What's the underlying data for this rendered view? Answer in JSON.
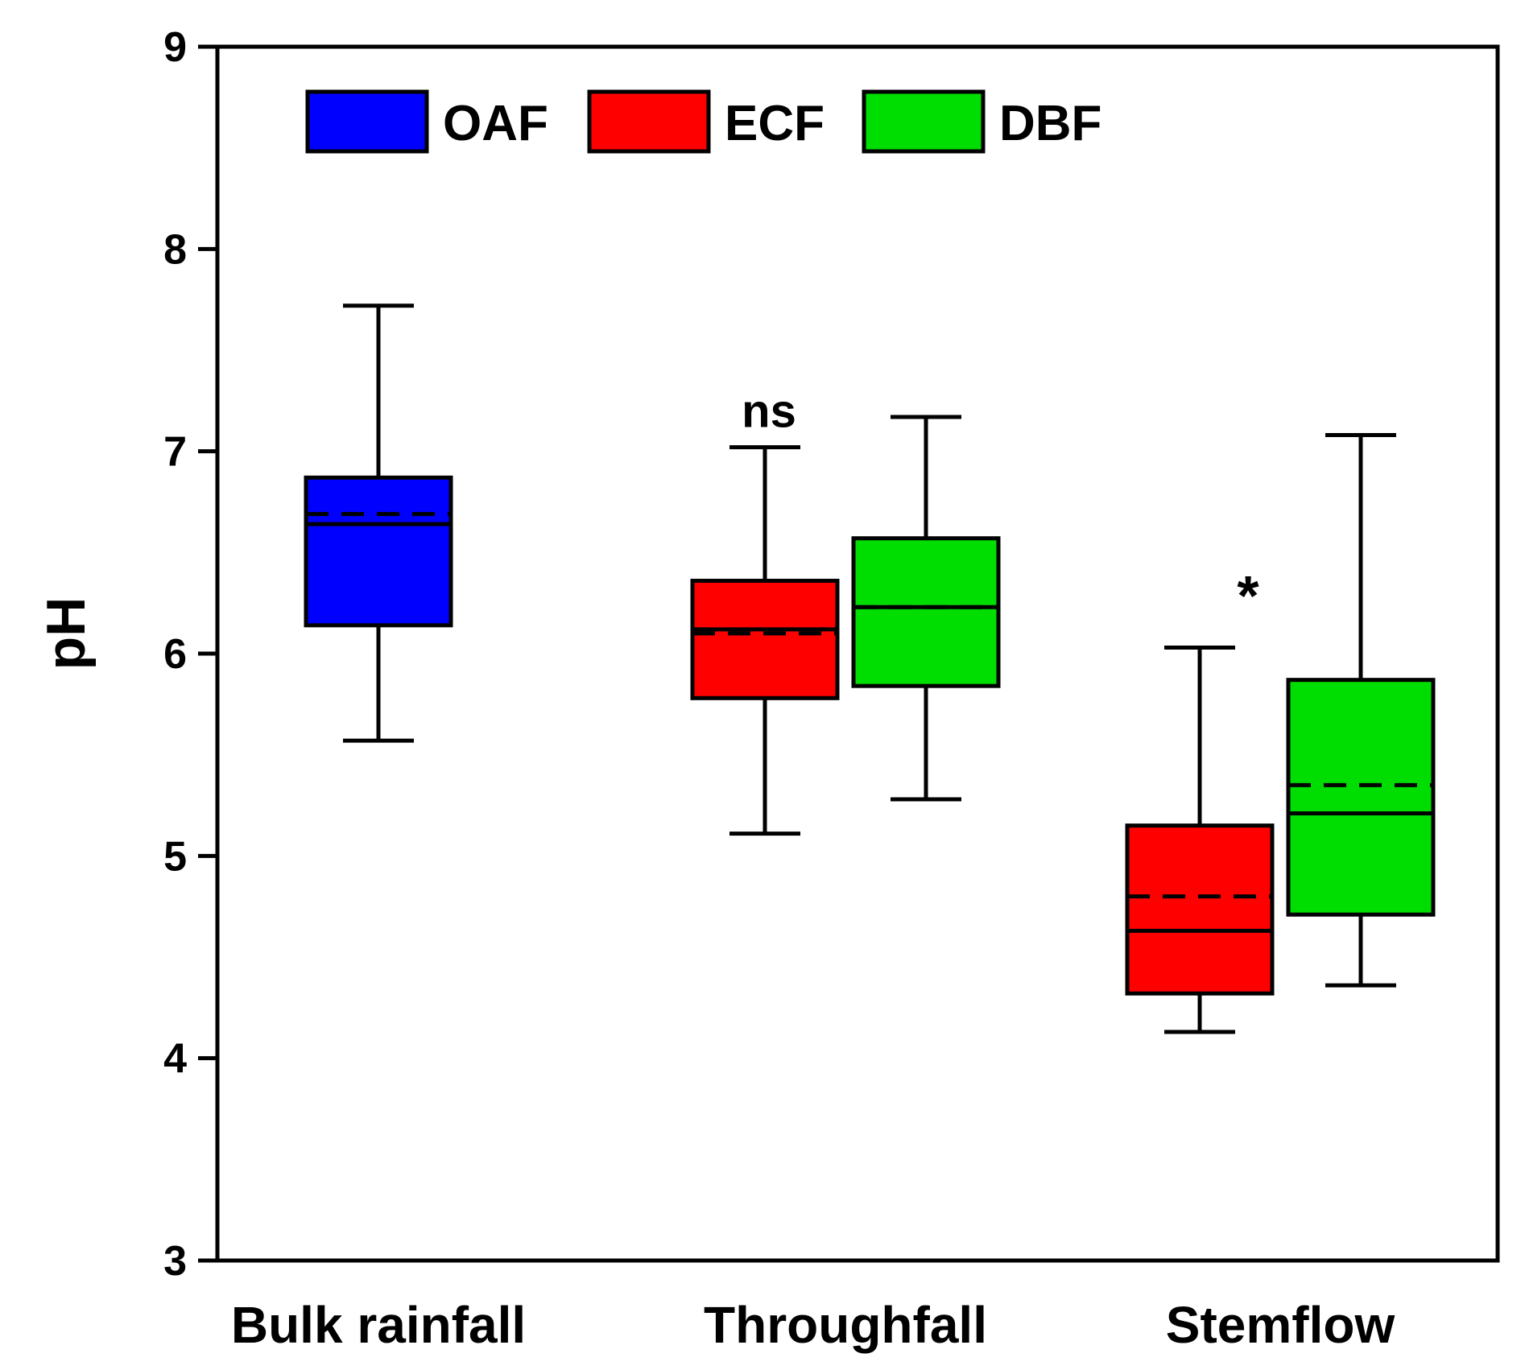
{
  "chart_data": {
    "type": "box",
    "title": "",
    "xlabel": "",
    "ylabel": "pH",
    "ylim": [
      3,
      9
    ],
    "yticks": [
      3,
      4,
      5,
      6,
      7,
      8,
      9
    ],
    "grid": false,
    "legend_placement": "top-left",
    "categories": [
      "Bulk rainfall",
      "Throughfall",
      "Stemflow"
    ],
    "series": [
      {
        "name": "OAF",
        "color": "#0000ff"
      },
      {
        "name": "ECF",
        "color": "#ff0000"
      },
      {
        "name": "DBF",
        "color": "#00dd00"
      }
    ],
    "boxes": [
      {
        "category": "Bulk rainfall",
        "series": "OAF",
        "whisker_low": 5.57,
        "q1": 6.14,
        "median": 6.64,
        "mean": 6.69,
        "q3": 6.87,
        "whisker_high": 7.72
      },
      {
        "category": "Throughfall",
        "series": "ECF",
        "whisker_low": 5.11,
        "q1": 5.78,
        "median": 6.12,
        "mean": 6.1,
        "q3": 6.36,
        "whisker_high": 7.02
      },
      {
        "category": "Throughfall",
        "series": "DBF",
        "whisker_low": 5.28,
        "q1": 5.84,
        "median": 6.23,
        "mean": 6.23,
        "q3": 6.57,
        "whisker_high": 7.17
      },
      {
        "category": "Stemflow",
        "series": "ECF",
        "whisker_low": 4.13,
        "q1": 4.32,
        "median": 4.63,
        "mean": 4.8,
        "q3": 5.15,
        "whisker_high": 6.03
      },
      {
        "category": "Stemflow",
        "series": "DBF",
        "whisker_low": 4.36,
        "q1": 4.71,
        "median": 5.21,
        "mean": 5.35,
        "q3": 5.87,
        "whisker_high": 7.08
      }
    ],
    "annotations": [
      {
        "text": "ns",
        "category": "Throughfall",
        "y": 7.2
      },
      {
        "text": "*",
        "category": "Stemflow",
        "y": 6.35
      }
    ]
  }
}
